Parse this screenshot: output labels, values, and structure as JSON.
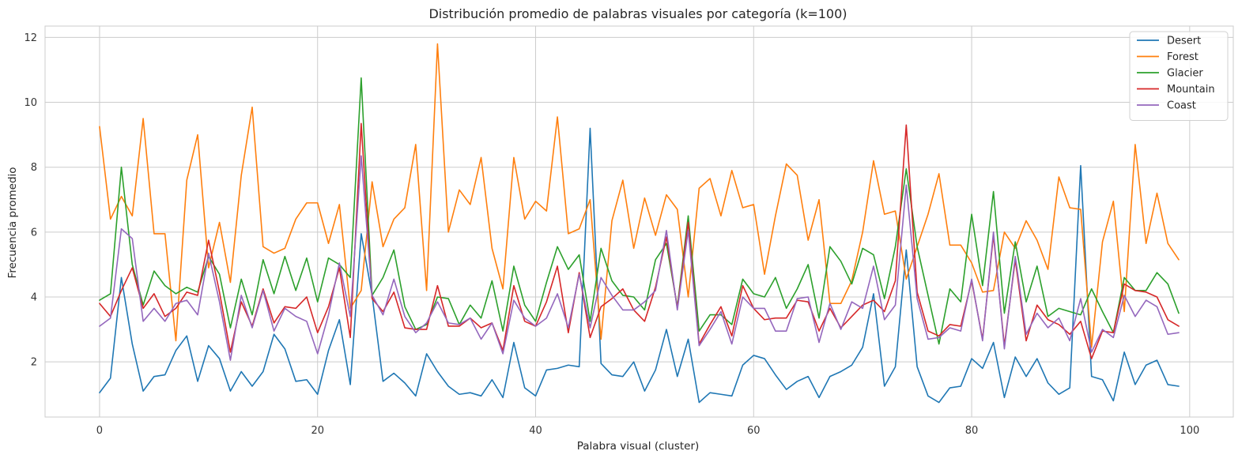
{
  "chart_data": {
    "type": "line",
    "title": "Distribución promedio de palabras visuales por categoría (k=100)",
    "xlabel": "Palabra visual (cluster)",
    "ylabel": "Frecuencia promedio",
    "xlim": [
      -5,
      104
    ],
    "ylim": [
      0.3,
      12.35
    ],
    "xticks": [
      0,
      20,
      40,
      60,
      80,
      100
    ],
    "yticks": [
      2,
      4,
      6,
      8,
      10,
      12
    ],
    "grid": true,
    "legend_position": "top-right",
    "series": [
      {
        "name": "Desert",
        "color": "#1f77b4",
        "values": [
          1.05,
          1.5,
          4.6,
          2.55,
          1.1,
          1.55,
          1.6,
          2.35,
          2.8,
          1.4,
          2.5,
          2.1,
          1.1,
          1.7,
          1.25,
          1.7,
          2.85,
          2.4,
          1.4,
          1.45,
          1.0,
          2.35,
          3.3,
          1.3,
          5.95,
          4.05,
          1.4,
          1.65,
          1.35,
          0.95,
          2.25,
          1.7,
          1.25,
          1.0,
          1.05,
          0.95,
          1.45,
          0.9,
          2.6,
          1.2,
          0.95,
          1.75,
          1.8,
          1.9,
          1.85,
          9.2,
          1.95,
          1.6,
          1.55,
          2.0,
          1.1,
          1.75,
          3.0,
          1.55,
          2.7,
          0.75,
          1.05,
          1.0,
          0.95,
          1.9,
          2.2,
          2.1,
          1.6,
          1.15,
          1.4,
          1.55,
          0.9,
          1.55,
          1.7,
          1.9,
          2.45,
          4.1,
          1.25,
          1.85,
          5.45,
          1.85,
          0.95,
          0.75,
          1.2,
          1.25,
          2.1,
          1.8,
          2.6,
          0.9,
          2.15,
          1.55,
          2.1,
          1.35,
          1.0,
          1.2,
          8.05,
          1.55,
          1.45,
          0.8,
          2.3,
          1.3,
          1.9,
          2.05,
          1.3,
          1.25
        ]
      },
      {
        "name": "Forest",
        "color": "#ff7f0e",
        "values": [
          9.25,
          6.4,
          7.1,
          6.5,
          9.5,
          5.95,
          5.95,
          2.65,
          7.6,
          9.0,
          4.9,
          6.3,
          4.45,
          7.75,
          9.85,
          5.55,
          5.35,
          5.5,
          6.4,
          6.9,
          6.9,
          5.65,
          6.85,
          3.65,
          4.2,
          7.55,
          5.55,
          6.4,
          6.75,
          8.7,
          4.2,
          11.8,
          6.0,
          7.3,
          6.85,
          8.3,
          5.5,
          4.25,
          8.3,
          6.4,
          6.95,
          6.65,
          9.55,
          5.95,
          6.1,
          7.0,
          2.7,
          6.35,
          7.6,
          5.5,
          7.05,
          5.9,
          7.15,
          6.7,
          4.0,
          7.35,
          7.65,
          6.5,
          7.9,
          6.75,
          6.85,
          4.7,
          6.5,
          8.1,
          7.75,
          5.75,
          7.0,
          3.8,
          3.8,
          4.5,
          6.0,
          8.2,
          6.55,
          6.65,
          4.55,
          5.55,
          6.55,
          7.8,
          5.6,
          5.6,
          5.05,
          4.15,
          4.2,
          6.0,
          5.5,
          6.35,
          5.75,
          4.85,
          7.7,
          6.75,
          6.7,
          2.45,
          5.7,
          6.95,
          3.55,
          8.7,
          5.65,
          7.2,
          5.65,
          5.15
        ]
      },
      {
        "name": "Glacier",
        "color": "#2ca02c",
        "values": [
          3.9,
          4.1,
          8.0,
          5.0,
          3.75,
          4.8,
          4.35,
          4.1,
          4.3,
          4.15,
          5.25,
          4.7,
          3.05,
          4.55,
          3.45,
          5.15,
          4.1,
          5.25,
          4.2,
          5.2,
          3.85,
          5.2,
          5.0,
          4.6,
          10.75,
          4.05,
          4.6,
          5.45,
          3.7,
          3.0,
          3.15,
          4.0,
          3.95,
          3.15,
          3.75,
          3.35,
          4.5,
          2.95,
          4.95,
          3.75,
          3.25,
          4.45,
          5.55,
          4.85,
          5.3,
          3.25,
          5.5,
          4.5,
          4.05,
          4.0,
          3.6,
          5.15,
          5.65,
          3.7,
          6.5,
          2.95,
          3.45,
          3.45,
          3.15,
          4.55,
          4.1,
          4.0,
          4.6,
          3.65,
          4.25,
          5.0,
          3.35,
          5.55,
          5.1,
          4.4,
          5.5,
          5.3,
          3.95,
          5.55,
          7.95,
          5.55,
          4.05,
          2.55,
          4.25,
          3.85,
          6.55,
          4.35,
          7.25,
          3.5,
          5.7,
          3.85,
          4.95,
          3.4,
          3.65,
          3.55,
          3.45,
          4.25,
          3.55,
          2.9,
          4.6,
          4.2,
          4.2,
          4.75,
          4.4,
          3.5
        ]
      },
      {
        "name": "Mountain",
        "color": "#d62728",
        "values": [
          3.8,
          3.4,
          4.2,
          4.9,
          3.65,
          4.1,
          3.4,
          3.65,
          4.15,
          4.05,
          5.75,
          4.15,
          2.3,
          3.85,
          3.1,
          4.25,
          3.2,
          3.7,
          3.65,
          4.0,
          2.9,
          3.7,
          4.9,
          2.75,
          9.35,
          3.95,
          3.55,
          4.15,
          3.05,
          3.0,
          3.0,
          4.35,
          3.1,
          3.1,
          3.35,
          3.05,
          3.2,
          2.35,
          4.35,
          3.25,
          3.1,
          3.85,
          4.95,
          2.9,
          4.75,
          2.75,
          3.7,
          3.95,
          4.25,
          3.6,
          3.25,
          4.3,
          5.85,
          3.65,
          6.3,
          2.55,
          3.15,
          3.7,
          2.8,
          4.35,
          3.65,
          3.3,
          3.35,
          3.35,
          3.9,
          3.85,
          2.95,
          3.65,
          3.05,
          3.4,
          3.75,
          3.9,
          3.55,
          4.5,
          9.3,
          4.15,
          2.95,
          2.8,
          3.15,
          3.1,
          4.5,
          2.7,
          5.9,
          2.5,
          5.15,
          2.65,
          3.75,
          3.3,
          3.15,
          2.85,
          3.25,
          2.1,
          2.95,
          2.9,
          4.4,
          4.2,
          4.15,
          4.0,
          3.3,
          3.1
        ]
      },
      {
        "name": "Coast",
        "color": "#9467bd",
        "values": [
          3.1,
          3.35,
          6.1,
          5.8,
          3.25,
          3.65,
          3.25,
          3.8,
          3.9,
          3.45,
          5.35,
          3.85,
          2.05,
          4.05,
          3.05,
          4.2,
          2.95,
          3.65,
          3.4,
          3.25,
          2.25,
          3.45,
          5.05,
          3.4,
          8.35,
          4.05,
          3.45,
          4.55,
          3.4,
          2.9,
          3.2,
          3.85,
          3.2,
          3.15,
          3.35,
          2.7,
          3.2,
          2.25,
          3.9,
          3.35,
          3.1,
          3.35,
          4.1,
          3.05,
          4.7,
          3.05,
          4.6,
          4.05,
          3.6,
          3.6,
          3.85,
          4.2,
          6.05,
          3.6,
          6.05,
          2.5,
          3.0,
          3.55,
          2.55,
          4.0,
          3.65,
          3.65,
          2.95,
          2.95,
          3.95,
          4.0,
          2.6,
          3.8,
          3.0,
          3.85,
          3.65,
          4.95,
          3.3,
          3.75,
          7.45,
          3.95,
          2.7,
          2.75,
          3.05,
          2.95,
          4.55,
          2.65,
          6.0,
          2.4,
          5.25,
          2.85,
          3.5,
          3.05,
          3.35,
          2.65,
          3.95,
          2.3,
          3.0,
          2.75,
          4.05,
          3.4,
          3.9,
          3.7,
          2.85,
          2.9
        ]
      }
    ]
  }
}
